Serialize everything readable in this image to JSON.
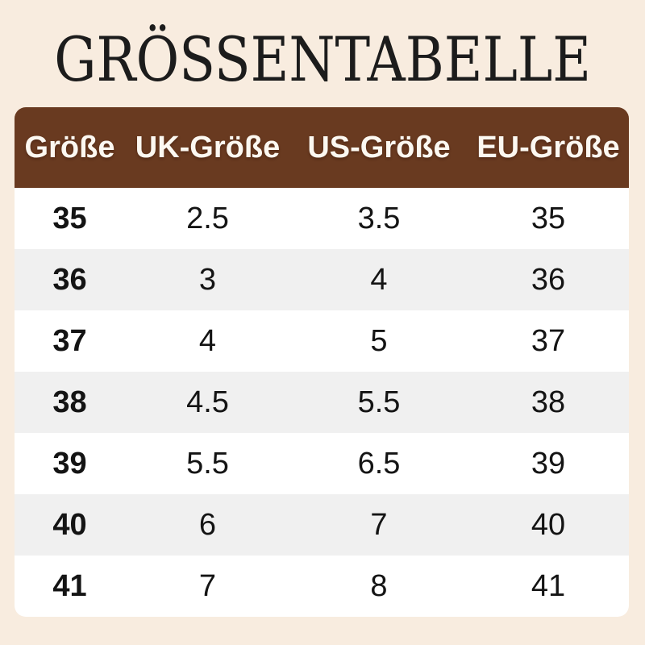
{
  "title": "GRÖSSENTABELLE",
  "colors": {
    "page-bg": "#f8ecdf",
    "title-text": "#1c1c1c",
    "header-bg": "#693a20",
    "header-text": "#fcf8f1",
    "row-bg": "#ffffff",
    "row-alt-bg": "#f0f0f0",
    "cell-text": "#141414"
  },
  "chart_data": {
    "type": "table",
    "title": "GRÖSSENTABELLE",
    "columns": [
      "Größe",
      "UK-Größe",
      "US-Größe",
      "EU-Größe"
    ],
    "rows": [
      [
        "35",
        "2.5",
        "3.5",
        "35"
      ],
      [
        "36",
        "3",
        "4",
        "36"
      ],
      [
        "37",
        "4",
        "5",
        "37"
      ],
      [
        "38",
        "4.5",
        "5.5",
        "38"
      ],
      [
        "39",
        "5.5",
        "6.5",
        "39"
      ],
      [
        "40",
        "6",
        "7",
        "40"
      ],
      [
        "41",
        "7",
        "8",
        "41"
      ]
    ],
    "layout": {
      "header_position": "top",
      "zebra_striping": true,
      "first_column_bold": true,
      "grid": false
    }
  }
}
